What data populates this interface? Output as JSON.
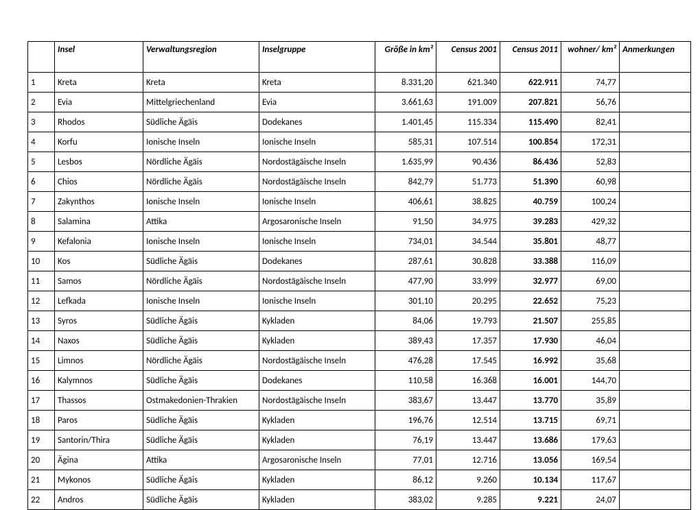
{
  "table": {
    "columns": {
      "idx": "",
      "insel": "Insel",
      "region": "Verwaltungsregion",
      "gruppe": "Inselgruppe",
      "groesse": "Größe in km²",
      "c2001": "Census 2001",
      "c2011": "Census 2011",
      "dichte": "wohner/ km²",
      "anm": "Anmerkungen"
    },
    "rows": [
      {
        "idx": "1",
        "insel": "Kreta",
        "region": "Kreta",
        "gruppe": "Kreta",
        "groesse": "8.331,20",
        "c2001": "621.340",
        "c2011": "622.911",
        "dichte": "74,77",
        "anm": ""
      },
      {
        "idx": "2",
        "insel": "Evia",
        "region": "Mittelgriechenland",
        "gruppe": "Evia",
        "groesse": "3.661,63",
        "c2001": "191.009",
        "c2011": "207.821",
        "dichte": "56,76",
        "anm": ""
      },
      {
        "idx": "3",
        "insel": "Rhodos",
        "region": "Südliche Ägäis",
        "gruppe": "Dodekanes",
        "groesse": "1.401,45",
        "c2001": "115.334",
        "c2011": "115.490",
        "dichte": "82,41",
        "anm": ""
      },
      {
        "idx": "4",
        "insel": "Korfu",
        "region": "Ionische Inseln",
        "gruppe": "Ionische Inseln",
        "groesse": "585,31",
        "c2001": "107.514",
        "c2011": "100.854",
        "dichte": "172,31",
        "anm": ""
      },
      {
        "idx": "5",
        "insel": "Lesbos",
        "region": "Nördliche Ägäis",
        "gruppe": "Nordostägäische Inseln",
        "groesse": "1.635,99",
        "c2001": "90.436",
        "c2011": "86.436",
        "dichte": "52,83",
        "anm": ""
      },
      {
        "idx": "6",
        "insel": "Chios",
        "region": "Nördliche Ägäis",
        "gruppe": "Nordostägäische Inseln",
        "groesse": "842,79",
        "c2001": "51.773",
        "c2011": "51.390",
        "dichte": "60,98",
        "anm": ""
      },
      {
        "idx": "7",
        "insel": "Zakynthos",
        "region": "Ionische Inseln",
        "gruppe": "Ionische Inseln",
        "groesse": "406,61",
        "c2001": "38.825",
        "c2011": "40.759",
        "dichte": "100,24",
        "anm": ""
      },
      {
        "idx": "8",
        "insel": "Salamina",
        "region": "Attika",
        "gruppe": "Argosaronische Inseln",
        "groesse": "91,50",
        "c2001": "34.975",
        "c2011": "39.283",
        "dichte": "429,32",
        "anm": ""
      },
      {
        "idx": "9",
        "insel": "Kefalonia",
        "region": "Ionische Inseln",
        "gruppe": "Ionische Inseln",
        "groesse": "734,01",
        "c2001": "34.544",
        "c2011": "35.801",
        "dichte": "48,77",
        "anm": ""
      },
      {
        "idx": "10",
        "insel": "Kos",
        "region": "Südliche Ägäis",
        "gruppe": "Dodekanes",
        "groesse": "287,61",
        "c2001": "30.828",
        "c2011": "33.388",
        "dichte": "116,09",
        "anm": ""
      },
      {
        "idx": "11",
        "insel": "Samos",
        "region": "Nördliche Ägäis",
        "gruppe": "Nordostägäische Inseln",
        "groesse": "477,90",
        "c2001": "33.999",
        "c2011": "32.977",
        "dichte": "69,00",
        "anm": ""
      },
      {
        "idx": "12",
        "insel": "Lefkada",
        "region": "Ionische Inseln",
        "gruppe": "Ionische Inseln",
        "groesse": "301,10",
        "c2001": "20.295",
        "c2011": "22.652",
        "dichte": "75,23",
        "anm": ""
      },
      {
        "idx": "13",
        "insel": "Syros",
        "region": "Südliche Ägäis",
        "gruppe": "Kykladen",
        "groesse": "84,06",
        "c2001": "19.793",
        "c2011": "21.507",
        "dichte": "255,85",
        "anm": ""
      },
      {
        "idx": "14",
        "insel": "Naxos",
        "region": "Südliche Ägäis",
        "gruppe": "Kykladen",
        "groesse": "389,43",
        "c2001": "17.357",
        "c2011": "17.930",
        "dichte": "46,04",
        "anm": ""
      },
      {
        "idx": "15",
        "insel": "Limnos",
        "region": "Nördliche Ägäis",
        "gruppe": "Nordostägäische Inseln",
        "groesse": "476,28",
        "c2001": "17.545",
        "c2011": "16.992",
        "dichte": "35,68",
        "anm": ""
      },
      {
        "idx": "16",
        "insel": "Kalymnos",
        "region": "Südliche Ägäis",
        "gruppe": "Dodekanes",
        "groesse": "110,58",
        "c2001": "16.368",
        "c2011": "16.001",
        "dichte": "144,70",
        "anm": ""
      },
      {
        "idx": "17",
        "insel": "Thassos",
        "region": "Ostmakedonien-Thrakien",
        "gruppe": "Nordostägäische Inseln",
        "groesse": "383,67",
        "c2001": "13.447",
        "c2011": "13.770",
        "dichte": "35,89",
        "anm": ""
      },
      {
        "idx": "18",
        "insel": "Paros",
        "region": "Südliche Ägäis",
        "gruppe": "Kykladen",
        "groesse": "196,76",
        "c2001": "12.514",
        "c2011": "13.715",
        "dichte": "69,71",
        "anm": ""
      },
      {
        "idx": "19",
        "insel": "Santorin/Thira",
        "region": "Südliche Ägäis",
        "gruppe": "Kykladen",
        "groesse": "76,19",
        "c2001": "13.447",
        "c2011": "13.686",
        "dichte": "179,63",
        "anm": ""
      },
      {
        "idx": "20",
        "insel": "Ägina",
        "region": "Attika",
        "gruppe": "Argosaronische Inseln",
        "groesse": "77,01",
        "c2001": "12.716",
        "c2011": "13.056",
        "dichte": "169,54",
        "anm": ""
      },
      {
        "idx": "21",
        "insel": "Mykonos",
        "region": "Südliche Ägäis",
        "gruppe": "Kykladen",
        "groesse": "86,12",
        "c2001": "9.260",
        "c2011": "10.134",
        "dichte": "117,67",
        "anm": ""
      },
      {
        "idx": "22",
        "insel": "Andros",
        "region": "Südliche Ägäis",
        "gruppe": "Kykladen",
        "groesse": "383,02",
        "c2001": "9.285",
        "c2011": "9.221",
        "dichte": "24,07",
        "anm": ""
      }
    ]
  }
}
